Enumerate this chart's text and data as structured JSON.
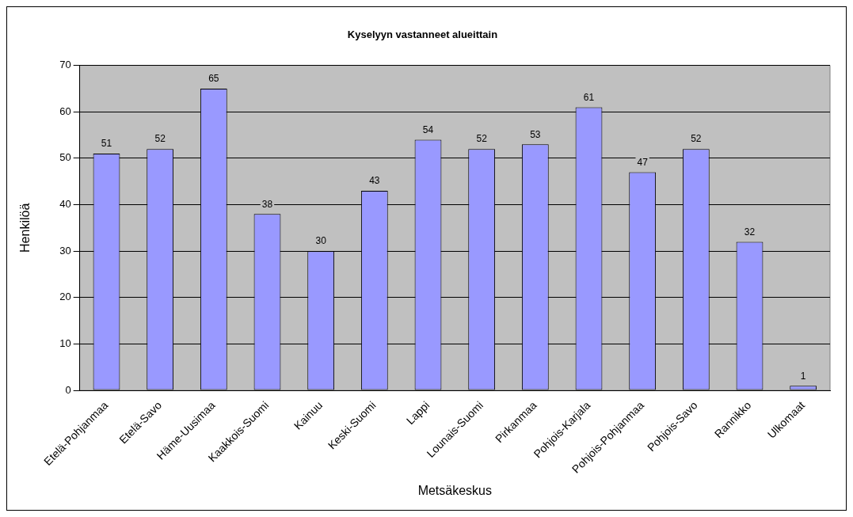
{
  "chart_data": {
    "type": "bar",
    "title": "Kyselyyn vastanneet alueittain",
    "xlabel": "Metsäkeskus",
    "ylabel": "Henkilöä",
    "categories": [
      "Etelä-Pohjanmaa",
      "Etelä-Savo",
      "Häme-Uusimaa",
      "Kaakkois-Suomi",
      "Kainuu",
      "Keski-Suomi",
      "Lappi",
      "Lounais-Suomi",
      "Pirkanmaa",
      "Pohjois-Karjala",
      "Pohjois-Pohjanmaa",
      "Pohjois-Savo",
      "Rannikko",
      "Ulkomaat"
    ],
    "values": [
      51,
      52,
      65,
      38,
      30,
      43,
      54,
      52,
      53,
      61,
      47,
      52,
      32,
      1
    ],
    "color": "#9999ff",
    "ylim": [
      0,
      70
    ],
    "yticks": [
      0,
      10,
      20,
      30,
      40,
      50,
      60,
      70
    ],
    "grid": "y",
    "legend": false,
    "data_labels": true
  }
}
